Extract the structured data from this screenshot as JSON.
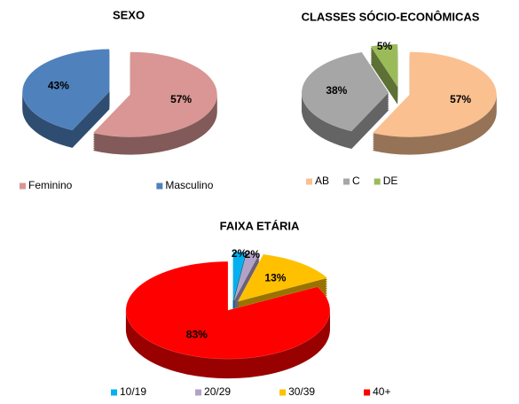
{
  "chart_data": [
    {
      "type": "pie",
      "title": "SEXO",
      "categories": [
        "Feminino",
        "Masculino"
      ],
      "values": [
        57,
        43
      ],
      "value_labels": [
        "57%",
        "43%"
      ],
      "colors": [
        "#d99694",
        "#4f81bd"
      ],
      "legend": "bottom"
    },
    {
      "type": "pie",
      "title": "CLASSES SÓCIO-ECONÔMICAS",
      "categories": [
        "AB",
        "C",
        "DE"
      ],
      "values": [
        57,
        38,
        5
      ],
      "value_labels": [
        "57%",
        "38%",
        "5%"
      ],
      "colors": [
        "#fac090",
        "#a6a6a6",
        "#9bbb59"
      ],
      "legend": "bottom"
    },
    {
      "type": "pie",
      "title": "FAIXA ETÁRIA",
      "categories": [
        "10/19",
        "20/29",
        "30/39",
        "40+"
      ],
      "values": [
        2,
        2,
        13,
        83
      ],
      "value_labels": [
        "2%",
        "2%",
        "13%",
        "83%"
      ],
      "colors": [
        "#00b0f0",
        "#b3a2c7",
        "#ffc000",
        "#ff0000"
      ],
      "legend": "bottom"
    }
  ]
}
